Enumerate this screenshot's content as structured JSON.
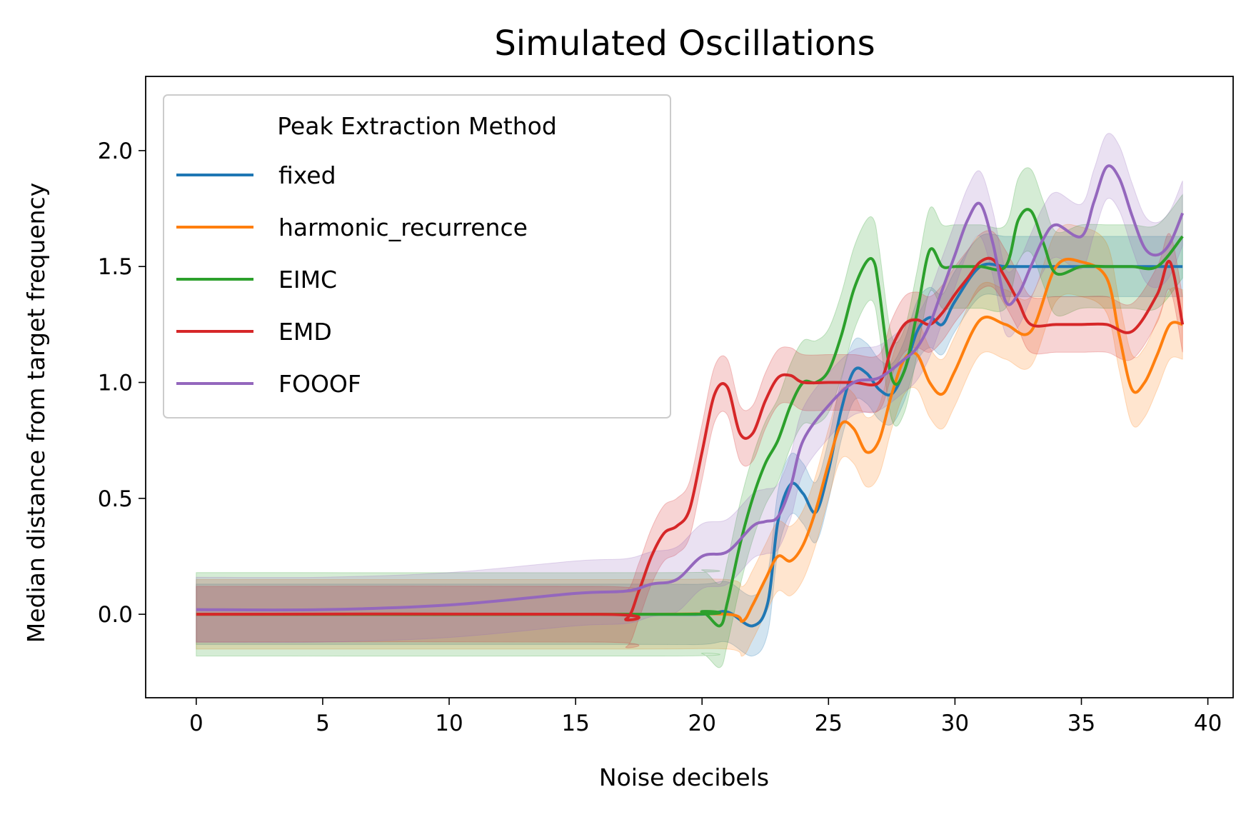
{
  "chart_data": {
    "type": "line",
    "title": "Simulated Oscillations",
    "xlabel": "Noise decibels",
    "ylabel": "Median distance from target frequency",
    "xlim": [
      -2,
      41
    ],
    "ylim": [
      -0.36,
      2.32
    ],
    "xticks": [
      0,
      5,
      10,
      15,
      20,
      25,
      30,
      35,
      40
    ],
    "yticks": [
      0.0,
      0.5,
      1.0,
      1.5,
      2.0
    ],
    "xtick_labels": [
      "0",
      "5",
      "10",
      "15",
      "20",
      "25",
      "30",
      "35",
      "40"
    ],
    "ytick_labels": [
      "0.0",
      "0.5",
      "1.0",
      "1.5",
      "2.0"
    ],
    "legend": {
      "title": "Peak Extraction Method",
      "placement": "upper-left"
    },
    "grid": false,
    "series": [
      {
        "name": "fixed",
        "color": "#1f77b4",
        "x": [
          0,
          17,
          20,
          21,
          22,
          22.6,
          23,
          23.5,
          24,
          24.5,
          25,
          25.5,
          26,
          26.5,
          27,
          27.5,
          28,
          28.5,
          29,
          29.5,
          30,
          31,
          32,
          33,
          35,
          37,
          39
        ],
        "y": [
          0.0,
          0.0,
          0.0,
          0.01,
          -0.05,
          0.05,
          0.4,
          0.56,
          0.52,
          0.44,
          0.62,
          0.88,
          1.05,
          1.04,
          0.97,
          0.95,
          1.05,
          1.22,
          1.28,
          1.25,
          1.35,
          1.5,
          1.5,
          1.5,
          1.5,
          1.5,
          1.5
        ],
        "band": 0.13
      },
      {
        "name": "harmonic_recurrence",
        "color": "#ff7f0e",
        "x": [
          0,
          17,
          21,
          21.6,
          22,
          22.5,
          23,
          23.5,
          24,
          24.5,
          25,
          25.5,
          26,
          26.5,
          27,
          27.5,
          28,
          28.5,
          29,
          29.5,
          30,
          31,
          32,
          33,
          34,
          35,
          36,
          36.5,
          37,
          37.5,
          38,
          38.5,
          39
        ],
        "y": [
          0.0,
          0.0,
          0.0,
          -0.03,
          0.04,
          0.15,
          0.25,
          0.23,
          0.3,
          0.45,
          0.65,
          0.82,
          0.8,
          0.7,
          0.75,
          0.95,
          1.1,
          1.12,
          1.0,
          0.95,
          1.05,
          1.27,
          1.25,
          1.22,
          1.5,
          1.52,
          1.45,
          1.2,
          0.97,
          1.0,
          1.12,
          1.25,
          1.25
        ],
        "band": 0.15
      },
      {
        "name": "EIMC",
        "color": "#2ca02c",
        "x": [
          0,
          19,
          20,
          20.7,
          21,
          21.5,
          22,
          22.5,
          23,
          23.5,
          24,
          24.5,
          25,
          25.5,
          26,
          26.5,
          26.8,
          27,
          27.5,
          28,
          28.5,
          29,
          29.5,
          30,
          31,
          32,
          32.5,
          33,
          33.5,
          34,
          35,
          36,
          37,
          38,
          39
        ],
        "y": [
          0.0,
          0.0,
          0.01,
          -0.05,
          0.05,
          0.3,
          0.5,
          0.65,
          0.75,
          0.9,
          1.0,
          1.0,
          1.05,
          1.2,
          1.4,
          1.52,
          1.52,
          1.4,
          1.02,
          1.05,
          1.3,
          1.57,
          1.5,
          1.5,
          1.5,
          1.5,
          1.7,
          1.74,
          1.6,
          1.47,
          1.5,
          1.5,
          1.5,
          1.5,
          1.63
        ],
        "band": 0.18
      },
      {
        "name": "EMD",
        "color": "#d62728",
        "x": [
          0,
          16,
          17,
          17.5,
          18,
          18.5,
          19,
          19.5,
          20,
          20.5,
          21,
          21.5,
          22,
          22.5,
          23,
          23.5,
          24,
          25,
          26,
          27,
          27.5,
          28,
          28.5,
          29,
          29.5,
          30,
          30.5,
          31,
          31.5,
          32,
          32.5,
          33,
          34,
          35,
          36,
          37,
          38,
          38.5,
          39
        ],
        "y": [
          0.0,
          0.0,
          -0.02,
          0.1,
          0.25,
          0.35,
          0.38,
          0.45,
          0.7,
          0.95,
          0.98,
          0.78,
          0.78,
          0.92,
          1.02,
          1.03,
          1.0,
          1.0,
          1.0,
          1.0,
          1.15,
          1.25,
          1.27,
          1.25,
          1.3,
          1.38,
          1.45,
          1.52,
          1.53,
          1.45,
          1.35,
          1.25,
          1.25,
          1.25,
          1.25,
          1.22,
          1.38,
          1.52,
          1.25
        ],
        "band": 0.12
      },
      {
        "name": "FOOOF",
        "color": "#9467bd",
        "x": [
          0,
          5,
          10,
          15,
          17,
          18,
          19,
          20,
          21,
          22,
          22.5,
          23,
          23.5,
          24,
          25,
          26,
          27,
          28,
          28.5,
          29,
          29.5,
          30,
          30.5,
          31,
          31.5,
          32,
          32.5,
          33,
          33.5,
          34,
          35,
          35.5,
          36,
          36.5,
          37,
          37.5,
          38,
          38.5,
          39
        ],
        "y": [
          0.02,
          0.02,
          0.04,
          0.09,
          0.1,
          0.13,
          0.15,
          0.25,
          0.27,
          0.38,
          0.4,
          0.42,
          0.55,
          0.75,
          0.9,
          1.0,
          1.02,
          1.1,
          1.15,
          1.25,
          1.4,
          1.55,
          1.7,
          1.77,
          1.6,
          1.35,
          1.38,
          1.5,
          1.62,
          1.68,
          1.63,
          1.78,
          1.93,
          1.88,
          1.72,
          1.58,
          1.55,
          1.6,
          1.73
        ],
        "band": 0.14
      }
    ]
  }
}
